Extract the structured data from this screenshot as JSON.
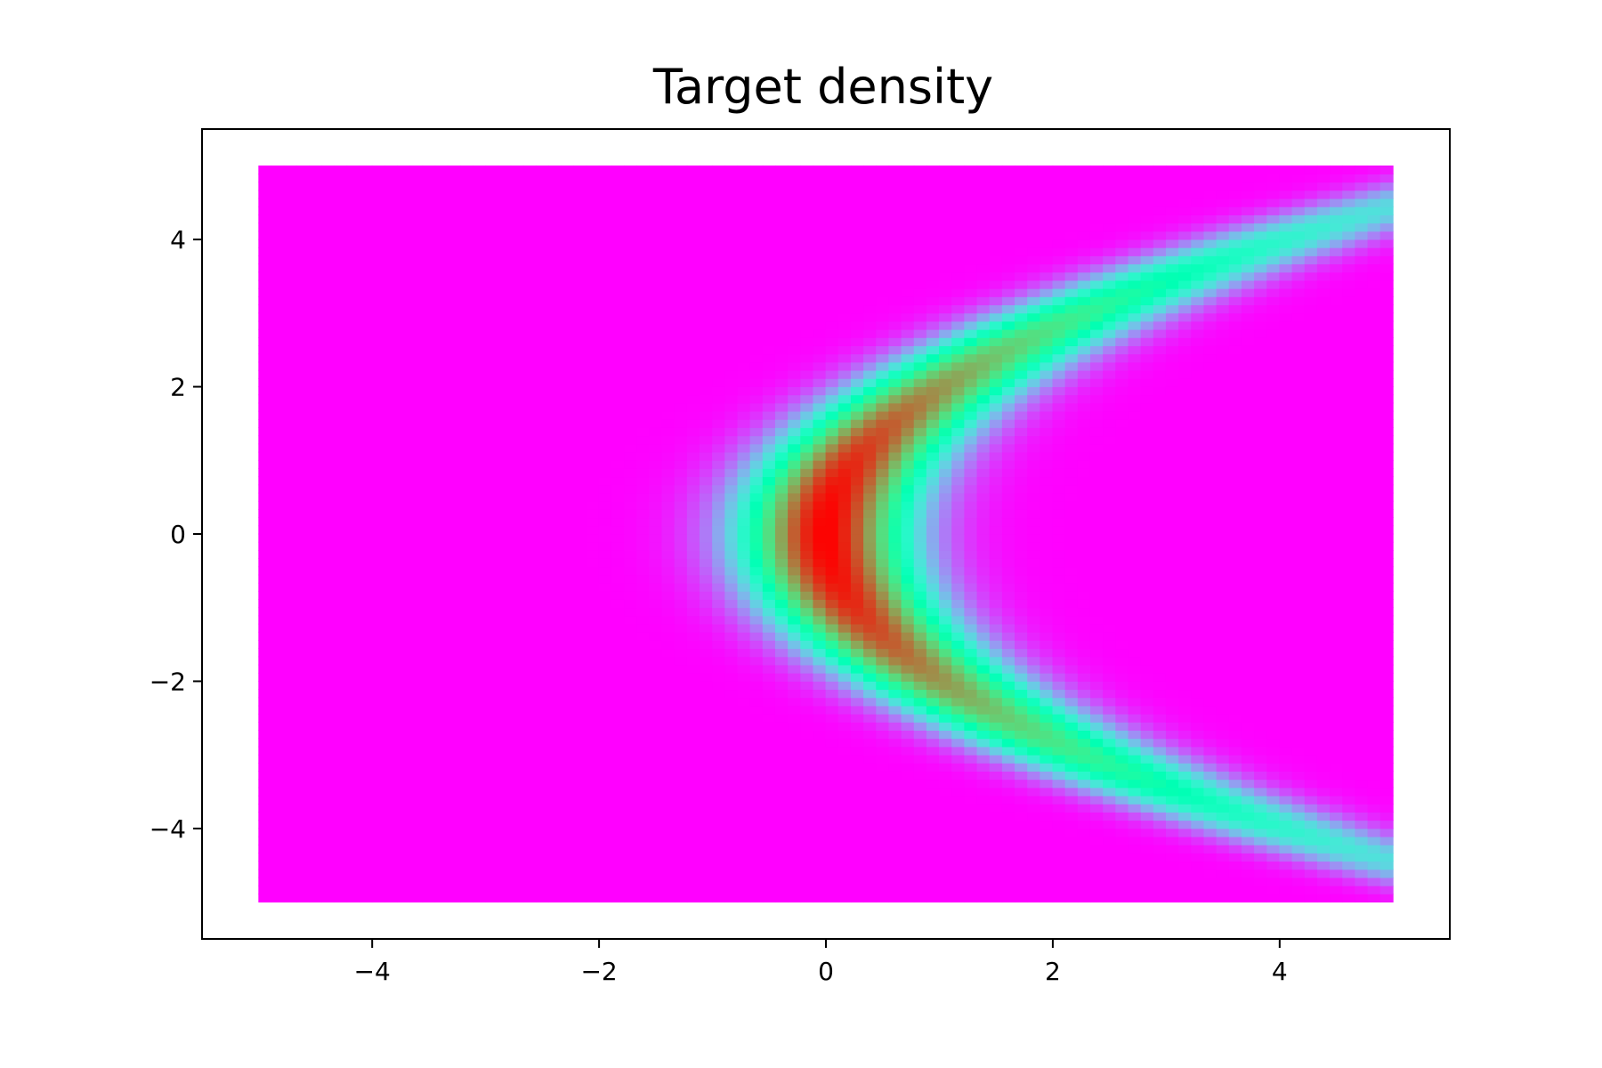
{
  "chart_data": {
    "type": "heatmap",
    "title": "Target density",
    "xlabel": "",
    "ylabel": "",
    "xlim": [
      -5.5,
      5.5
    ],
    "ylim": [
      -5.5,
      5.5
    ],
    "data_range": {
      "x": [
        -5,
        5
      ],
      "y": [
        -5,
        5
      ]
    },
    "x_ticks": [
      -4,
      -2,
      0,
      2,
      4
    ],
    "x_tick_labels": [
      "−4",
      "−2",
      "0",
      "2",
      "4"
    ],
    "y_ticks": [
      -4,
      -2,
      0,
      2,
      4
    ],
    "y_tick_labels": [
      "−4",
      "−2",
      "0",
      "2",
      "4"
    ],
    "grid": false,
    "colormap": "rainbow",
    "colormap_colors": [
      "#8000ff",
      "#2adddd",
      "#d4dd80",
      "#ff0000"
    ],
    "density": {
      "description": "banana-shaped density ridge along x = 0.25*y^2",
      "ridge_curve": "x = 0.25 * y^2",
      "ridge_width": 1.0,
      "peak_location": [
        0,
        0
      ],
      "peak_value": 1.0,
      "values_at_y0": [
        {
          "x": -2,
          "v": 0.05
        },
        {
          "x": -1,
          "v": 0.5
        },
        {
          "x": 0,
          "v": 1.0
        },
        {
          "x": 1,
          "v": 0.55
        },
        {
          "x": 2,
          "v": 0.12
        }
      ]
    }
  }
}
